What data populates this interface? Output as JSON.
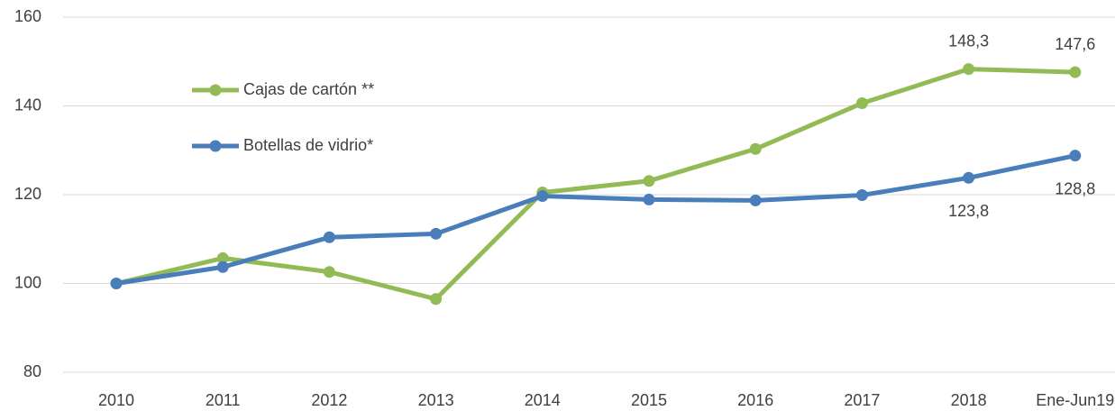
{
  "chart_data": {
    "type": "line",
    "categories": [
      "2010",
      "2011",
      "2012",
      "2013",
      "2014",
      "2015",
      "2016",
      "2017",
      "2018",
      "Ene-Jun19"
    ],
    "series": [
      {
        "name": "Cajas de cartón **",
        "color": "#92bb55",
        "values": [
          100,
          105.7,
          102.6,
          96.5,
          120.5,
          123.1,
          130.3,
          140.6,
          148.3,
          147.6
        ],
        "value_labels": [
          null,
          null,
          null,
          null,
          null,
          null,
          null,
          null,
          "148,3",
          "147,6"
        ]
      },
      {
        "name": "Botellas de vidrio*",
        "color": "#4a7ebb",
        "values": [
          100,
          103.7,
          110.4,
          111.2,
          119.7,
          118.9,
          118.7,
          119.9,
          123.8,
          128.8
        ],
        "value_labels": [
          null,
          null,
          null,
          null,
          null,
          null,
          null,
          null,
          "123,8",
          "128,8"
        ]
      }
    ],
    "ylim": [
      80,
      160
    ],
    "yticks": [
      80,
      100,
      120,
      140,
      160
    ],
    "grid": true
  }
}
